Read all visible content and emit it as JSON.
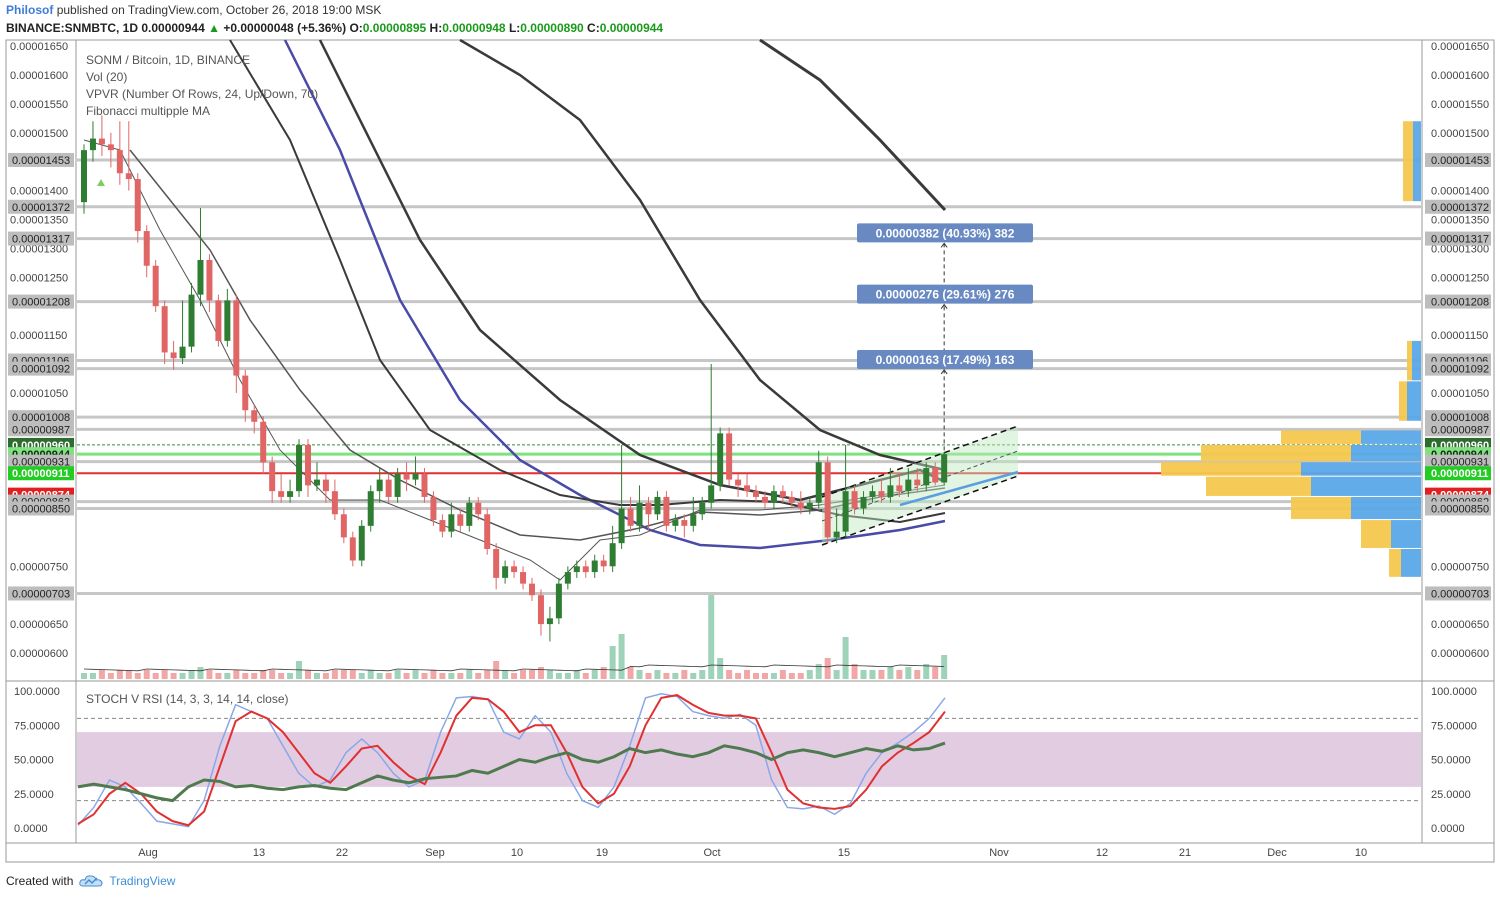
{
  "header": {
    "author": "Philosof",
    "published": "published on TradingView.com, October 26, 2018 19:00 MSK",
    "symbol": "BINANCE:SNMBTC, 1D",
    "last": "0.00000944",
    "change_arrow": "▲",
    "change": "+0.00000048 (+5.36%)",
    "o_label": "O:",
    "o": "0.00000895",
    "h_label": "H:",
    "h": "0.00000948",
    "l_label": "L:",
    "l": "0.00000890",
    "c_label": "C:",
    "c": "0.00000944"
  },
  "legend": {
    "line1": "SONM / Bitcoin, 1D, BINANCE",
    "line2": "Vol (20)",
    "line3": "VPVR (Number Of Rows, 24, Up/Down, 70)",
    "line4": "Fibonacci multipple MA"
  },
  "footer": {
    "created_with": "Created with",
    "brand": "TradingView",
    "logo_icon": "tradingview-cloud-icon"
  },
  "colors": {
    "up": "#2e7d32",
    "down": "#e06666",
    "vol_up": "#9fd3b9",
    "vol_down": "#f2a7a7",
    "ma_dark": "#3a3a3a",
    "ma_blue": "#4a4aa8",
    "hline": "#bdbdbd",
    "target_box": "#6889c2",
    "stoch_band": "#d8bbd8",
    "stoch_k": "#8aa8e8",
    "stoch_d": "#e03030",
    "rsi": "#4f7a4f"
  },
  "chart_data": [
    {
      "type": "candlestick",
      "title": "SONM / Bitcoin, 1D, BINANCE",
      "ylim": [
        5.7e-06,
        1.65e-05
      ],
      "x_tick_labels": [
        "Aug",
        "13",
        "22",
        "Sep",
        "10",
        "19",
        "Oct",
        "15",
        "Nov",
        "12",
        "21",
        "Dec",
        "10"
      ],
      "y_tick_labels": [
        "0.00001650",
        "0.00001600",
        "0.00001550",
        "0.00001500",
        "0.00001400",
        "0.00001350",
        "0.00001300",
        "0.00001250",
        "0.00001150",
        "0.00001050",
        "0.00000750",
        "0.00000650",
        "0.00000600"
      ],
      "price_labels": [
        {
          "value": "0.00001453",
          "kind": "grey"
        },
        {
          "value": "0.00001372",
          "kind": "grey"
        },
        {
          "value": "0.00001317",
          "kind": "grey"
        },
        {
          "value": "0.00001208",
          "kind": "grey"
        },
        {
          "value": "0.00001106",
          "kind": "grey"
        },
        {
          "value": "0.00001092",
          "kind": "grey"
        },
        {
          "value": "0.00001008",
          "kind": "grey"
        },
        {
          "value": "0.00000987",
          "kind": "grey"
        },
        {
          "value": "0.00000960",
          "kind": "darkgreen"
        },
        {
          "value": "0.00000944",
          "kind": "green"
        },
        {
          "value": "0.00000931",
          "kind": "grey"
        },
        {
          "value": "0.00000911",
          "kind": "bright"
        },
        {
          "value": "0.00000874",
          "kind": "red"
        },
        {
          "value": "0.00000862",
          "kind": "grey"
        },
        {
          "value": "0.00000850",
          "kind": "grey"
        },
        {
          "value": "0.00000703",
          "kind": "grey"
        }
      ],
      "horizontal_levels": [
        1.453e-05,
        1.372e-05,
        1.317e-05,
        1.208e-05,
        1.106e-05,
        1.092e-05,
        1.008e-05,
        9.87e-06,
        9.31e-06,
        8.62e-06,
        8.5e-06,
        7.03e-06
      ],
      "green_line": 9.44e-06,
      "red_line": 9.11e-06,
      "targets": [
        {
          "label": "0.00000382 (40.93%) 382",
          "value": 1.326e-05
        },
        {
          "label": "0.00000276 (29.61%) 276",
          "value": 1.22e-05
        },
        {
          "label": "0.00000163 (17.49%) 163",
          "value": 1.107e-05
        }
      ],
      "candles": [
        [
          1.38,
          1.47,
          1.36,
          1.48
        ],
        [
          1.47,
          1.49,
          1.45,
          1.52
        ],
        [
          1.49,
          1.48,
          1.46,
          1.53
        ],
        [
          1.48,
          1.47,
          1.44,
          1.5
        ],
        [
          1.47,
          1.43,
          1.41,
          1.52
        ],
        [
          1.43,
          1.42,
          1.4,
          1.52
        ],
        [
          1.42,
          1.33,
          1.31,
          1.43
        ],
        [
          1.33,
          1.27,
          1.25,
          1.34
        ],
        [
          1.27,
          1.2,
          1.19,
          1.28
        ],
        [
          1.2,
          1.12,
          1.1,
          1.21
        ],
        [
          1.12,
          1.11,
          1.09,
          1.14
        ],
        [
          1.11,
          1.13,
          1.1,
          1.21
        ],
        [
          1.13,
          1.22,
          1.12,
          1.24
        ],
        [
          1.22,
          1.28,
          1.2,
          1.37
        ],
        [
          1.28,
          1.21,
          1.19,
          1.29
        ],
        [
          1.21,
          1.14,
          1.13,
          1.22
        ],
        [
          1.14,
          1.21,
          1.13,
          1.23
        ],
        [
          1.21,
          1.08,
          1.05,
          1.22
        ],
        [
          1.08,
          1.02,
          1.0,
          1.09
        ],
        [
          1.02,
          1.0,
          0.98,
          1.03
        ],
        [
          1.0,
          0.93,
          0.91,
          1.01
        ],
        [
          0.93,
          0.88,
          0.86,
          0.94
        ],
        [
          0.88,
          0.87,
          0.86,
          0.91
        ],
        [
          0.87,
          0.88,
          0.86,
          0.9
        ],
        [
          0.88,
          0.96,
          0.87,
          0.97
        ],
        [
          0.96,
          0.89,
          0.87,
          0.97
        ],
        [
          0.89,
          0.9,
          0.88,
          0.93
        ],
        [
          0.9,
          0.88,
          0.86,
          0.91
        ],
        [
          0.88,
          0.84,
          0.83,
          0.9
        ],
        [
          0.84,
          0.8,
          0.79,
          0.85
        ],
        [
          0.8,
          0.76,
          0.75,
          0.81
        ],
        [
          0.76,
          0.82,
          0.75,
          0.83
        ],
        [
          0.82,
          0.88,
          0.81,
          0.89
        ],
        [
          0.88,
          0.9,
          0.86,
          0.92
        ],
        [
          0.9,
          0.87,
          0.86,
          0.91
        ],
        [
          0.87,
          0.91,
          0.86,
          0.92
        ],
        [
          0.91,
          0.9,
          0.88,
          0.93
        ],
        [
          0.9,
          0.91,
          0.89,
          0.94
        ],
        [
          0.91,
          0.87,
          0.86,
          0.92
        ],
        [
          0.87,
          0.83,
          0.82,
          0.88
        ],
        [
          0.83,
          0.81,
          0.8,
          0.84
        ],
        [
          0.81,
          0.84,
          0.8,
          0.86
        ],
        [
          0.84,
          0.82,
          0.81,
          0.85
        ],
        [
          0.82,
          0.86,
          0.81,
          0.87
        ],
        [
          0.86,
          0.84,
          0.83,
          0.87
        ],
        [
          0.84,
          0.78,
          0.77,
          0.85
        ],
        [
          0.78,
          0.73,
          0.71,
          0.79
        ],
        [
          0.73,
          0.75,
          0.72,
          0.76
        ],
        [
          0.75,
          0.74,
          0.73,
          0.76
        ],
        [
          0.74,
          0.72,
          0.71,
          0.75
        ],
        [
          0.72,
          0.7,
          0.69,
          0.73
        ],
        [
          0.7,
          0.65,
          0.63,
          0.71
        ],
        [
          0.65,
          0.66,
          0.62,
          0.68
        ],
        [
          0.66,
          0.72,
          0.65,
          0.73
        ],
        [
          0.72,
          0.74,
          0.71,
          0.75
        ],
        [
          0.74,
          0.75,
          0.73,
          0.76
        ],
        [
          0.75,
          0.74,
          0.73,
          0.76
        ],
        [
          0.74,
          0.76,
          0.73,
          0.77
        ],
        [
          0.76,
          0.75,
          0.74,
          0.77
        ],
        [
          0.75,
          0.79,
          0.74,
          0.82
        ],
        [
          0.79,
          0.85,
          0.78,
          0.96
        ],
        [
          0.85,
          0.82,
          0.81,
          0.87
        ],
        [
          0.82,
          0.86,
          0.81,
          0.89
        ],
        [
          0.86,
          0.84,
          0.81,
          0.87
        ],
        [
          0.84,
          0.87,
          0.83,
          0.88
        ],
        [
          0.87,
          0.82,
          0.81,
          0.88
        ],
        [
          0.82,
          0.83,
          0.81,
          0.84
        ],
        [
          0.83,
          0.82,
          0.8,
          0.84
        ],
        [
          0.82,
          0.84,
          0.81,
          0.87
        ],
        [
          0.84,
          0.86,
          0.83,
          0.87
        ],
        [
          0.86,
          0.89,
          0.85,
          1.1
        ],
        [
          0.89,
          0.98,
          0.88,
          0.99
        ],
        [
          0.98,
          0.9,
          0.89,
          0.99
        ],
        [
          0.9,
          0.89,
          0.87,
          0.91
        ],
        [
          0.89,
          0.88,
          0.87,
          0.91
        ],
        [
          0.88,
          0.87,
          0.86,
          0.89
        ],
        [
          0.87,
          0.86,
          0.85,
          0.88
        ],
        [
          0.86,
          0.88,
          0.85,
          0.89
        ],
        [
          0.88,
          0.87,
          0.86,
          0.89
        ],
        [
          0.87,
          0.86,
          0.85,
          0.88
        ],
        [
          0.86,
          0.85,
          0.84,
          0.88
        ],
        [
          0.85,
          0.86,
          0.84,
          0.87
        ],
        [
          0.86,
          0.93,
          0.85,
          0.95
        ],
        [
          0.93,
          0.8,
          0.79,
          0.94
        ],
        [
          0.8,
          0.81,
          0.79,
          0.85
        ],
        [
          0.81,
          0.88,
          0.8,
          0.96
        ],
        [
          0.88,
          0.85,
          0.84,
          0.89
        ],
        [
          0.85,
          0.87,
          0.84,
          0.88
        ],
        [
          0.87,
          0.88,
          0.86,
          0.89
        ],
        [
          0.88,
          0.87,
          0.86,
          0.9
        ],
        [
          0.87,
          0.89,
          0.86,
          0.92
        ],
        [
          0.89,
          0.88,
          0.87,
          0.91
        ],
        [
          0.88,
          0.9,
          0.87,
          0.92
        ],
        [
          0.9,
          0.89,
          0.88,
          0.92
        ],
        [
          0.89,
          0.92,
          0.88,
          0.93
        ],
        [
          0.92,
          0.895,
          0.89,
          0.93
        ],
        [
          0.895,
          0.944,
          0.89,
          0.948
        ]
      ],
      "volumes": [
        2,
        2,
        3,
        2,
        3,
        3,
        2,
        3,
        2,
        3,
        2,
        2,
        3,
        4,
        3,
        2,
        2,
        3,
        2,
        2,
        3,
        3,
        2,
        2,
        6,
        3,
        2,
        2,
        3,
        3,
        3,
        2,
        3,
        2,
        2,
        3,
        2,
        3,
        2,
        3,
        2,
        2,
        2,
        3,
        2,
        3,
        6,
        3,
        2,
        3,
        3,
        4,
        3,
        2,
        2,
        3,
        2,
        3,
        4,
        11,
        15,
        4,
        3,
        2,
        3,
        2,
        2,
        3,
        2,
        3,
        28,
        7,
        3,
        2,
        3,
        2,
        2,
        2,
        3,
        2,
        2,
        3,
        5,
        7,
        3,
        14,
        5,
        3,
        3,
        3,
        4,
        3,
        4,
        3,
        5,
        4,
        8
      ],
      "note": "candle prices listed in units of 0.00001 BTC"
    },
    {
      "type": "line",
      "title": "STOCH V RSI (14, 3, 3, 14, 14, close)",
      "ylim": [
        0,
        100
      ],
      "y_tick_labels": [
        "100.0000",
        "75.00000",
        "50.0000",
        "25.0000",
        "0.0000"
      ],
      "band": [
        30,
        70
      ],
      "dashed_levels": [
        80,
        20
      ],
      "series": [
        {
          "name": "K",
          "values": [
            2,
            15,
            35,
            30,
            18,
            5,
            3,
            1,
            20,
            60,
            90,
            85,
            80,
            60,
            40,
            30,
            35,
            55,
            65,
            55,
            40,
            30,
            35,
            70,
            95,
            96,
            94,
            70,
            65,
            82,
            70,
            40,
            20,
            15,
            30,
            60,
            95,
            98,
            96,
            85,
            82,
            80,
            83,
            75,
            35,
            15,
            14,
            16,
            10,
            18,
            40,
            55,
            62,
            70,
            80,
            95
          ]
        },
        {
          "name": "D",
          "values": [
            3,
            10,
            25,
            33,
            25,
            12,
            5,
            2,
            12,
            45,
            78,
            85,
            80,
            70,
            55,
            40,
            33,
            45,
            58,
            60,
            48,
            38,
            32,
            55,
            82,
            95,
            94,
            85,
            70,
            75,
            75,
            55,
            30,
            18,
            25,
            45,
            75,
            95,
            97,
            90,
            84,
            82,
            82,
            80,
            55,
            28,
            18,
            15,
            14,
            16,
            28,
            45,
            55,
            62,
            70,
            85
          ]
        },
        {
          "name": "RSI",
          "values": [
            30,
            32,
            30,
            28,
            25,
            22,
            20,
            30,
            35,
            34,
            30,
            31,
            29,
            28,
            30,
            31,
            29,
            28,
            33,
            38,
            35,
            33,
            36,
            37,
            38,
            42,
            40,
            45,
            50,
            48,
            52,
            55,
            50,
            48,
            52,
            58,
            55,
            57,
            54,
            52,
            55,
            60,
            58,
            55,
            50,
            55,
            57,
            55,
            52,
            55,
            58,
            56,
            60,
            57,
            58,
            62
          ]
        }
      ]
    }
  ]
}
